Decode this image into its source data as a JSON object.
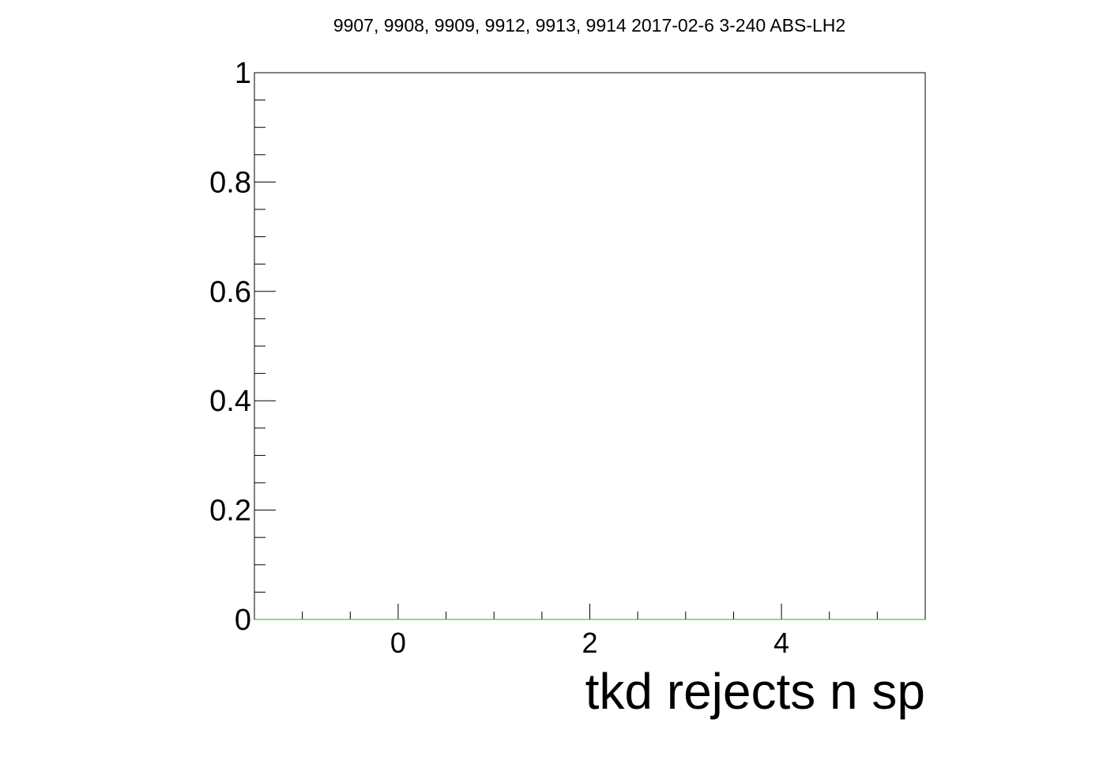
{
  "chart_data": {
    "type": "line",
    "title": "9907, 9908, 9909, 9912, 9913, 9914 2017-02-6 3-240 ABS-LH2",
    "xlabel": "tkd rejects n sp",
    "ylabel": "",
    "xlim": [
      -1.5,
      5.5
    ],
    "ylim": [
      0,
      1
    ],
    "x_ticks": [
      0,
      2,
      4
    ],
    "x_tick_labels": [
      "0",
      "2",
      "4"
    ],
    "y_ticks": [
      0,
      0.2,
      0.4,
      0.6,
      0.8,
      1
    ],
    "y_tick_labels": [
      "0",
      "0.2",
      "0.4",
      "0.6",
      "0.8",
      "1"
    ],
    "grid": false,
    "series": [
      {
        "x": [
          -1.5,
          5.5
        ],
        "y": [
          0,
          0
        ],
        "color": "#00cc00"
      }
    ]
  },
  "colors": {
    "frame": "#000000",
    "series": "#00cc00",
    "background": "#ffffff"
  }
}
